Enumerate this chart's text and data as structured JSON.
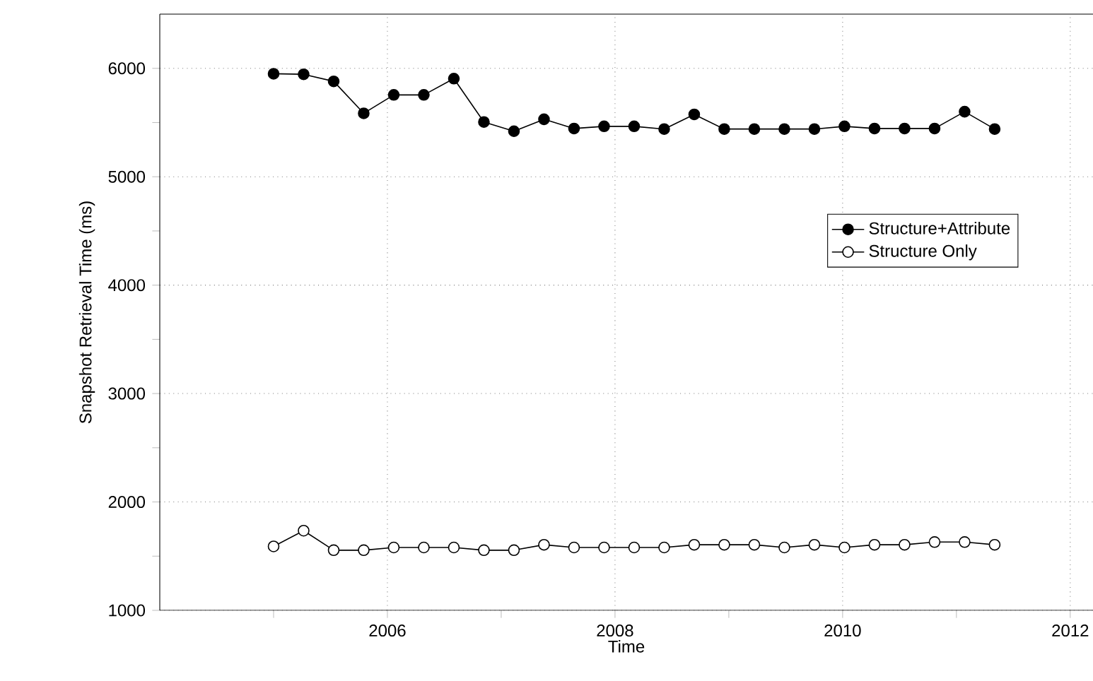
{
  "chart_data": {
    "type": "line",
    "xlabel": "Time",
    "ylabel": "Snapshot Retrieval Time (ms)",
    "xlim": [
      2004,
      2012.2
    ],
    "ylim": [
      1000,
      6500
    ],
    "xticks": [
      2006,
      2008,
      2010,
      2012,
      {
        "value": 2005,
        "label": null
      },
      {
        "value": 2007,
        "label": null
      },
      {
        "value": 2009,
        "label": null
      },
      {
        "value": 2011,
        "label": null
      }
    ],
    "yticks": [
      1000,
      2000,
      3000,
      4000,
      5000,
      6000,
      {
        "value": 1500,
        "label": null
      },
      {
        "value": 2500,
        "label": null
      },
      {
        "value": 3500,
        "label": null
      },
      {
        "value": 4500,
        "label": null
      },
      {
        "value": 5500,
        "label": null
      }
    ],
    "x": [
      2005.0,
      2005.264,
      2005.528,
      2005.792,
      2006.056,
      2006.32,
      2006.584,
      2006.848,
      2007.112,
      2007.376,
      2007.64,
      2007.904,
      2008.168,
      2008.432,
      2008.696,
      2008.96,
      2009.224,
      2009.488,
      2009.752,
      2010.016,
      2010.28,
      2010.544,
      2010.808,
      2011.072,
      2011.336
    ],
    "series": [
      {
        "name": "Structure+Attribute",
        "color": "#000000",
        "values": [
          5950,
          5945,
          5880,
          5585,
          5755,
          5755,
          5905,
          5505,
          5420,
          5530,
          5445,
          5465,
          5465,
          5440,
          5575,
          5440,
          5440,
          5440,
          5440,
          5465,
          5445,
          5445,
          5445,
          5600,
          5440
        ]
      },
      {
        "name": "Structure Only",
        "color": "#000000",
        "values": [
          1590,
          1735,
          1555,
          1555,
          1580,
          1580,
          1580,
          1555,
          1555,
          1605,
          1580,
          1580,
          1580,
          1580,
          1605,
          1605,
          1605,
          1580,
          1605,
          1580,
          1605,
          1605,
          1630,
          1630,
          1605
        ]
      }
    ],
    "grid": true,
    "legend": "center right",
    "marker": "circle",
    "line_style": "solid"
  }
}
